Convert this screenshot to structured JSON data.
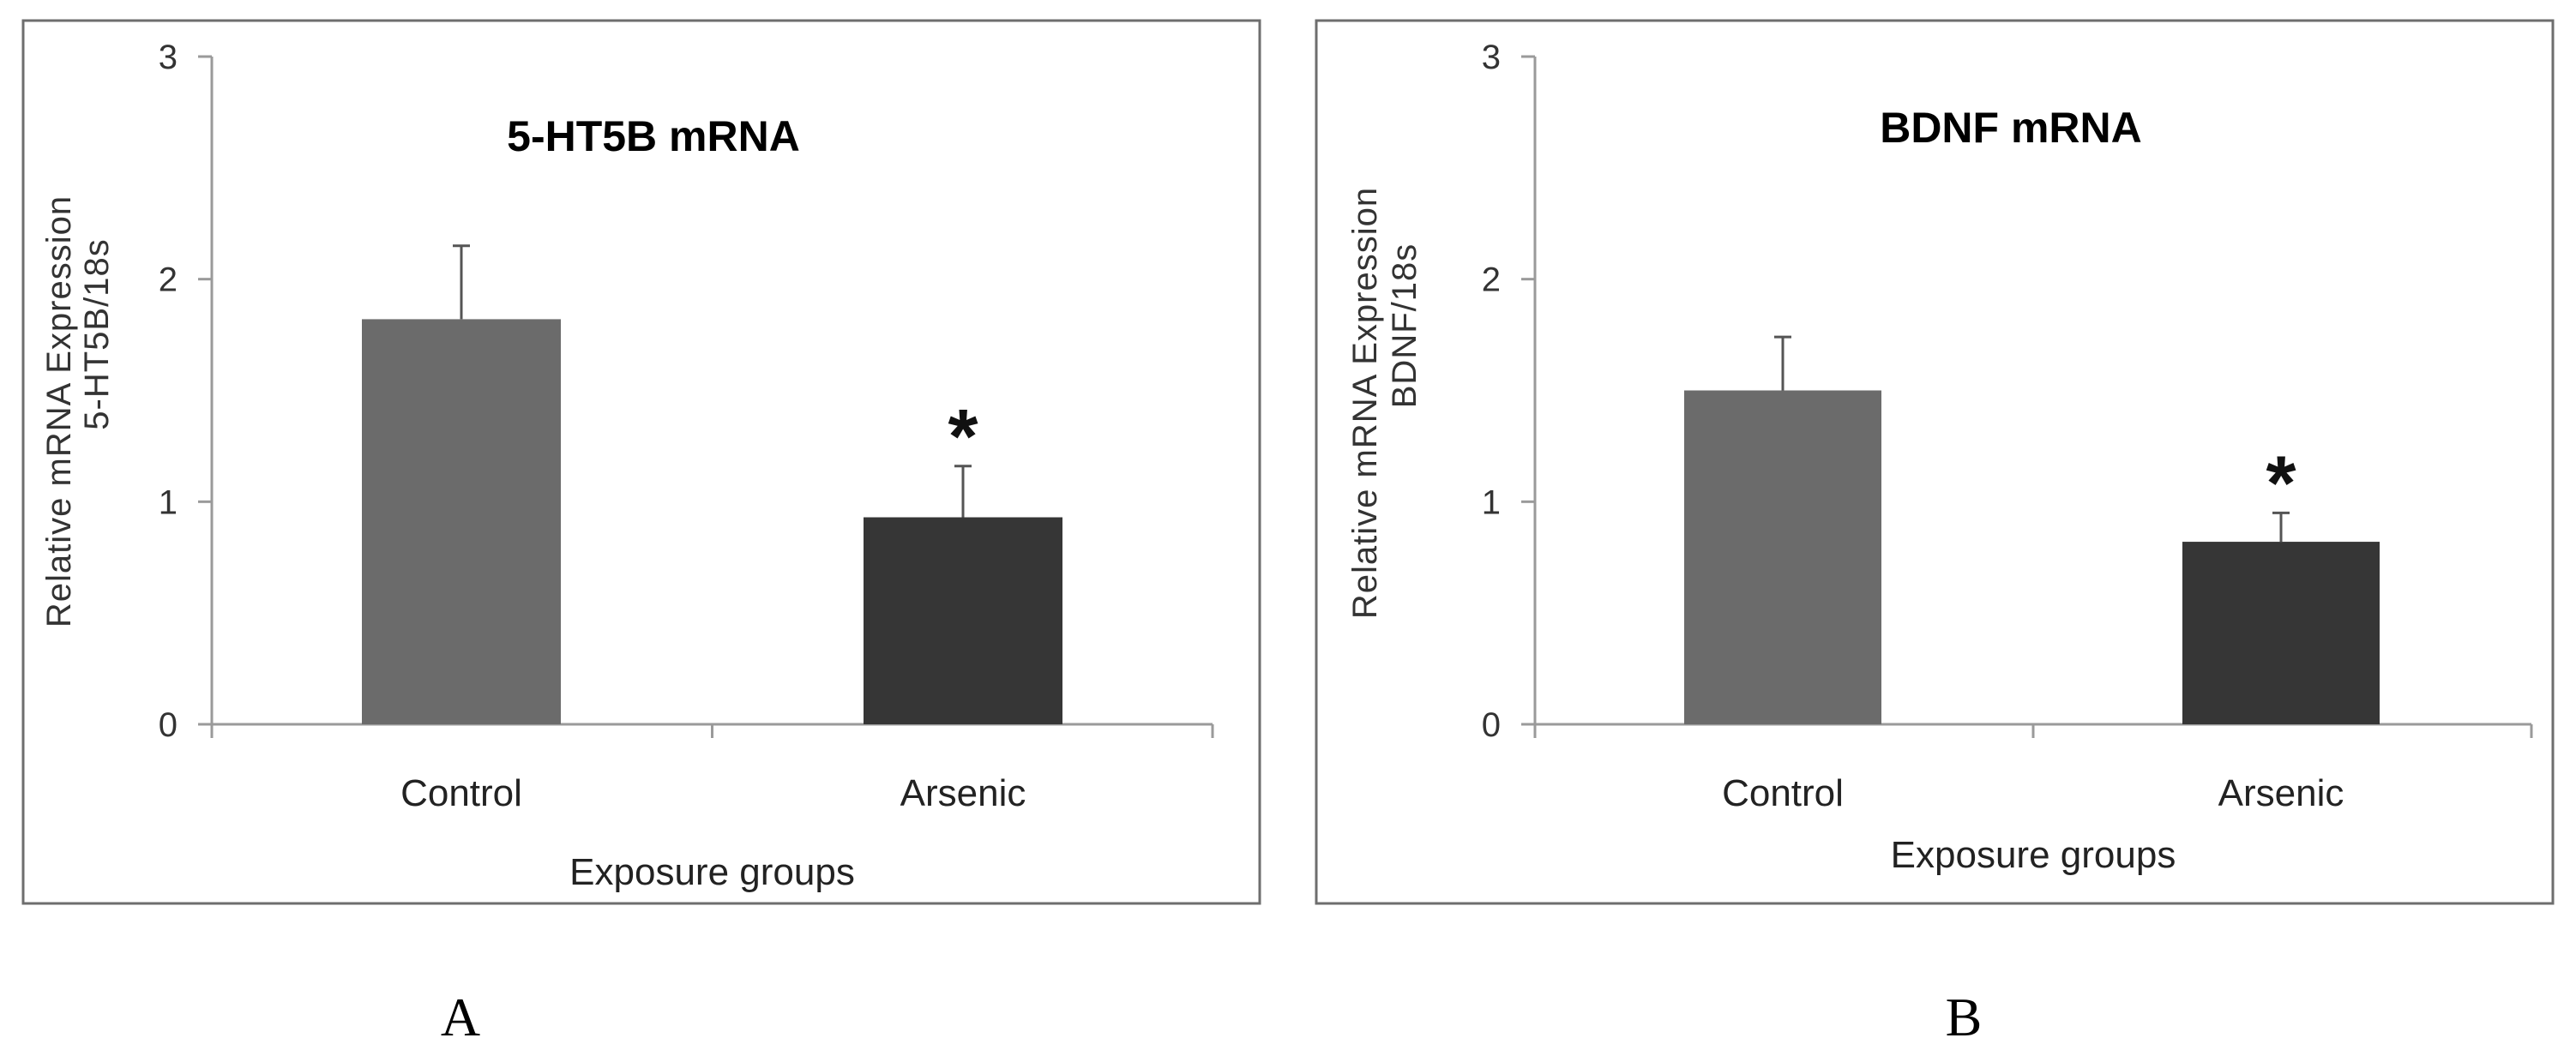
{
  "chart_data": [
    {
      "type": "bar",
      "panel_label": "A",
      "title": "5-HT5B mRNA",
      "ylabel_line1": "Relative mRNA Expression",
      "ylabel_line2": "5-HT5B/18s",
      "xlabel": "Exposure groups",
      "ylim": [
        0,
        3
      ],
      "yticks": [
        "0",
        "1",
        "2",
        "3"
      ],
      "categories": [
        "Control",
        "Arsenic"
      ],
      "values": [
        1.82,
        0.93
      ],
      "errors": [
        0.33,
        0.23
      ],
      "colors": [
        "#6b6b6b",
        "#363636"
      ],
      "significance": [
        "",
        "*"
      ]
    },
    {
      "type": "bar",
      "panel_label": "B",
      "title": "BDNF mRNA",
      "ylabel_line1": "Relative mRNA Expression",
      "ylabel_line2": "BDNF/18s",
      "xlabel": "Exposure groups",
      "ylim": [
        0,
        3
      ],
      "yticks": [
        "0",
        "1",
        "2",
        "3"
      ],
      "categories": [
        "Control",
        "Arsenic"
      ],
      "values": [
        1.5,
        0.82
      ],
      "errors": [
        0.24,
        0.13
      ],
      "colors": [
        "#6b6b6b",
        "#363636"
      ],
      "significance": [
        "",
        "*"
      ]
    }
  ]
}
